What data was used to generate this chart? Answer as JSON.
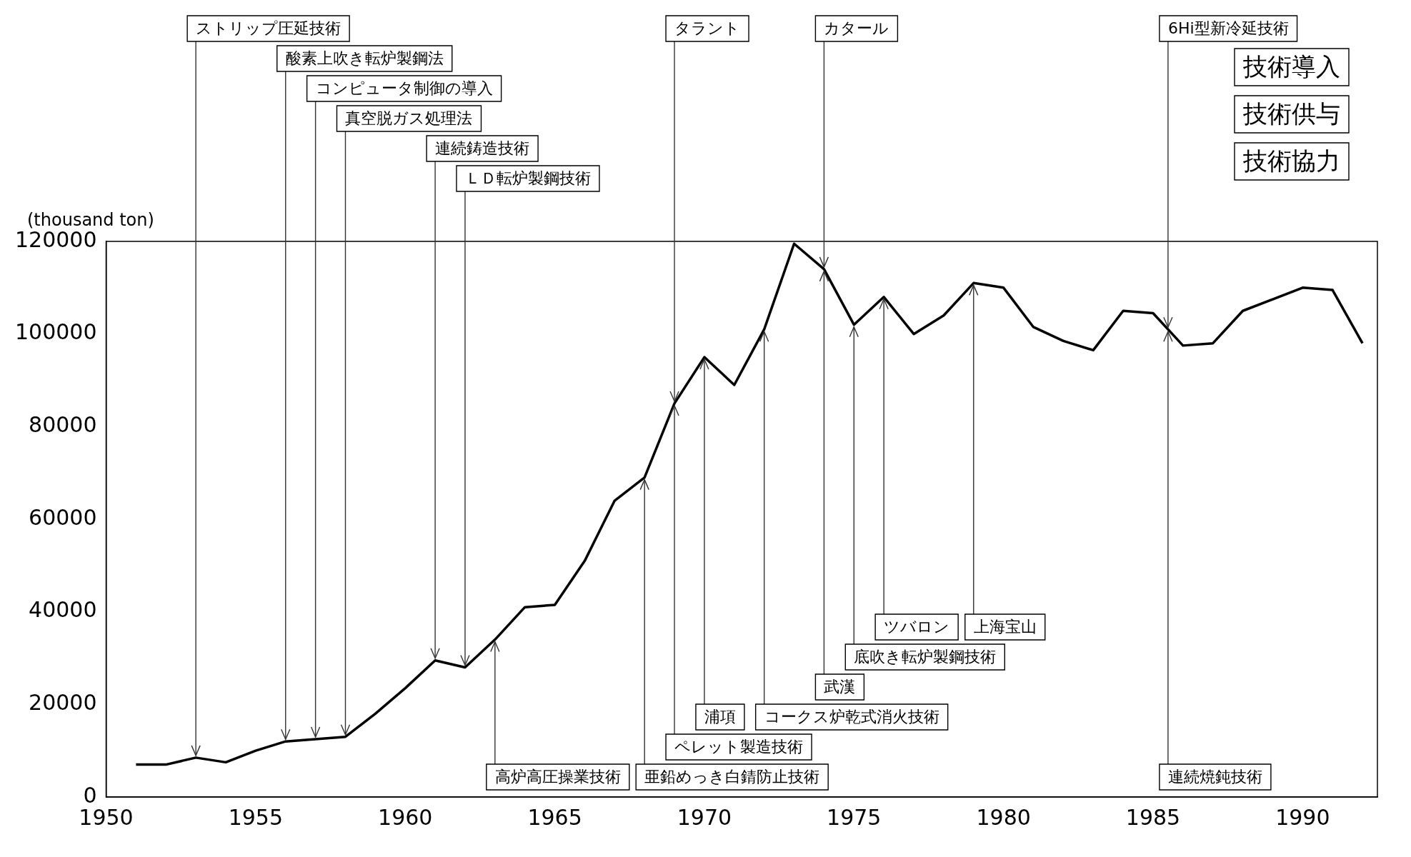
{
  "chart_data": {
    "type": "line",
    "ylabel": "(thousand ton)",
    "x": [
      1951,
      1952,
      1953,
      1954,
      1955,
      1956,
      1957,
      1958,
      1959,
      1960,
      1961,
      1962,
      1963,
      1964,
      1965,
      1966,
      1967,
      1968,
      1969,
      1970,
      1971,
      1972,
      1973,
      1974,
      1975,
      1976,
      1977,
      1978,
      1979,
      1980,
      1981,
      1982,
      1983,
      1984,
      1985,
      1986,
      1987,
      1988,
      1989,
      1990,
      1991,
      1992
    ],
    "values": [
      7000,
      7000,
      8500,
      7500,
      10000,
      12000,
      12500,
      13000,
      18000,
      23500,
      29500,
      28000,
      34000,
      41000,
      41500,
      51000,
      64000,
      69000,
      85000,
      95000,
      89000,
      101000,
      119500,
      114000,
      102000,
      108000,
      100000,
      104000,
      111000,
      110000,
      101500,
      98500,
      96500,
      105000,
      104500,
      97500,
      98000,
      105000,
      107500,
      110000,
      109500,
      98000
    ],
    "color": "#000000",
    "marker": "none",
    "xlim": [
      1950,
      1992.5
    ],
    "xticks": [
      1950,
      1955,
      1960,
      1965,
      1970,
      1975,
      1980,
      1985,
      1990
    ],
    "ylim": [
      0,
      120000
    ],
    "yticks": [
      0,
      20000,
      40000,
      60000,
      80000,
      100000,
      120000
    ],
    "annotations": [
      {
        "text": "ストリップ圧延技術",
        "x": 1953,
        "y": 8500
      },
      {
        "text": "酸素上吹き転炉製鋼法",
        "x": 1956,
        "y": 12000
      },
      {
        "text": "コンピュータ制御の導入",
        "x": 1957,
        "y": 12500
      },
      {
        "text": "真空脱ガス処理法",
        "x": 1958,
        "y": 13000
      },
      {
        "text": "連続鋳造技術",
        "x": 1961,
        "y": 29500
      },
      {
        "text": "ＬＤ転炉製鋼技術",
        "x": 1962,
        "y": 28000
      },
      {
        "text": "高炉高圧操業技術",
        "x": 1963,
        "y": 34000
      },
      {
        "text": "亜鉛めっき白錆防止技術",
        "x": 1968,
        "y": 69000
      },
      {
        "text": "ペレット製造技術",
        "x": 1969,
        "y": 85000
      },
      {
        "text": "タラント",
        "x": 1969,
        "y": 85000
      },
      {
        "text": "浦項",
        "x": 1970,
        "y": 95000
      },
      {
        "text": "コークス炉乾式消火技術",
        "x": 1972,
        "y": 101000
      },
      {
        "text": "武漢",
        "x": 1974,
        "y": 114000
      },
      {
        "text": "カタール",
        "x": 1974,
        "y": 114000
      },
      {
        "text": "底吹き転炉製鋼技術",
        "x": 1975,
        "y": 102000
      },
      {
        "text": "ツバロン",
        "x": 1976,
        "y": 108000
      },
      {
        "text": "上海宝山",
        "x": 1979,
        "y": 111000
      },
      {
        "text": "連続焼鈍技術",
        "x": 1985.5,
        "y": 101000
      },
      {
        "text": "6Hi型新冷延技術",
        "x": 1985.5,
        "y": 101000
      },
      "技術導入",
      "技術供与",
      "技術協力"
    ]
  }
}
